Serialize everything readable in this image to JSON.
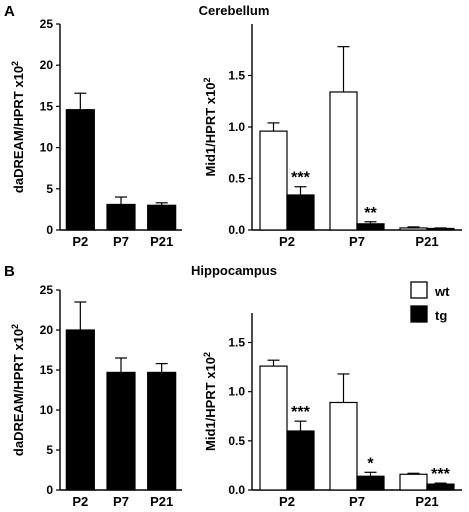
{
  "panels": [
    {
      "letter": "A",
      "title": "Cerebellum"
    },
    {
      "letter": "B",
      "title": "Hippocampus"
    }
  ],
  "legend": {
    "entries": [
      "wt",
      "tg"
    ]
  },
  "colors": {
    "wt": "#ffffff",
    "tg": "#000000",
    "stroke": "#000000"
  },
  "chart_data": [
    {
      "panel": "A",
      "type": "bar",
      "ylabel": "daDREAM/HPRT x10",
      "ylabel_sup": "2",
      "categories": [
        "P2",
        "P7",
        "P21"
      ],
      "ylim": [
        0,
        25
      ],
      "yticks": [
        "0",
        "5",
        "10",
        "15",
        "20",
        "25"
      ],
      "series": [
        {
          "values": [
            14.6,
            3.1,
            3.0
          ],
          "errors": [
            2.0,
            0.9,
            0.3
          ]
        }
      ]
    },
    {
      "panel": "A",
      "type": "bar",
      "ylabel": "Mid1/HPRT x10",
      "ylabel_sup": "2",
      "categories": [
        "P2",
        "P7",
        "P21"
      ],
      "ylim": [
        0,
        2.0
      ],
      "yticks": [
        "0.0",
        "0.5",
        "1.0",
        "1.5"
      ],
      "series": [
        {
          "name": "wt",
          "values": [
            0.96,
            1.34,
            0.02
          ],
          "errors": [
            0.08,
            0.44,
            0.01
          ]
        },
        {
          "name": "tg",
          "values": [
            0.34,
            0.06,
            0.015
          ],
          "errors": [
            0.08,
            0.02,
            0.005
          ]
        }
      ],
      "annotations": [
        {
          "category": "P2",
          "text": "***"
        },
        {
          "category": "P7",
          "text": "**"
        }
      ]
    },
    {
      "panel": "B",
      "type": "bar",
      "ylabel": "daDREAM/HPRT x10",
      "ylabel_sup": "2",
      "categories": [
        "P2",
        "P7",
        "P21"
      ],
      "ylim": [
        0,
        25
      ],
      "yticks": [
        "0",
        "5",
        "10",
        "15",
        "20",
        "25"
      ],
      "series": [
        {
          "values": [
            20.0,
            14.7,
            14.7
          ],
          "errors": [
            3.5,
            1.8,
            1.1
          ]
        }
      ]
    },
    {
      "panel": "B",
      "type": "bar",
      "ylabel": "Mid1/HPRT x10",
      "ylabel_sup": "2",
      "categories": [
        "P2",
        "P7",
        "P21"
      ],
      "ylim": [
        0,
        1.8
      ],
      "yticks": [
        "0.0",
        "0.5",
        "1.0",
        "1.5"
      ],
      "series": [
        {
          "name": "wt",
          "values": [
            1.26,
            0.89,
            0.16
          ],
          "errors": [
            0.06,
            0.29,
            0.01
          ]
        },
        {
          "name": "tg",
          "values": [
            0.6,
            0.14,
            0.06
          ],
          "errors": [
            0.1,
            0.04,
            0.01
          ]
        }
      ],
      "annotations": [
        {
          "category": "P2",
          "text": "***"
        },
        {
          "category": "P7",
          "text": "*"
        },
        {
          "category": "P21",
          "text": "***"
        }
      ]
    }
  ]
}
